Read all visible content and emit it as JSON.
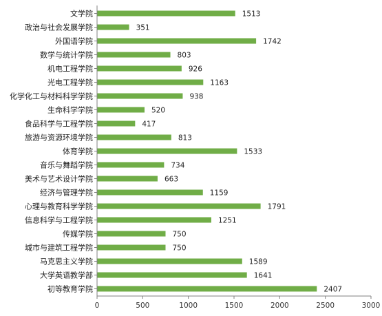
{
  "chart_data": {
    "type": "bar",
    "orientation": "horizontal",
    "categories": [
      "文学院",
      "政治与社会发展学院",
      "外国语学院",
      "数学与统计学院",
      "机电工程学院",
      "光电工程学院",
      "化学化工与材料科学学院",
      "生命科学学院",
      "食品科学与工程学院",
      "旅游与资源环境学院",
      "体育学院",
      "音乐与舞蹈学院",
      "美术与艺术设计学院",
      "经济与管理学院",
      "心理与教育科学学院",
      "信息科学与工程学院",
      "传媒学院",
      "城市与建筑工程学院",
      "马克思主义学院",
      "大学英语教学部",
      "初等教育学院"
    ],
    "values": [
      1513,
      351,
      1742,
      803,
      926,
      1163,
      938,
      520,
      417,
      813,
      1533,
      734,
      663,
      1159,
      1791,
      1251,
      750,
      750,
      1589,
      1641,
      2407
    ],
    "xlim": [
      0,
      3000
    ],
    "xticks": [
      0,
      500,
      1000,
      1500,
      2000,
      2500,
      3000
    ],
    "title": "",
    "xlabel": "",
    "ylabel": "",
    "grid": false,
    "data_labels": true,
    "colors": {
      "bar": "#70AD47",
      "axis": "#808080",
      "text": "#222222"
    }
  }
}
